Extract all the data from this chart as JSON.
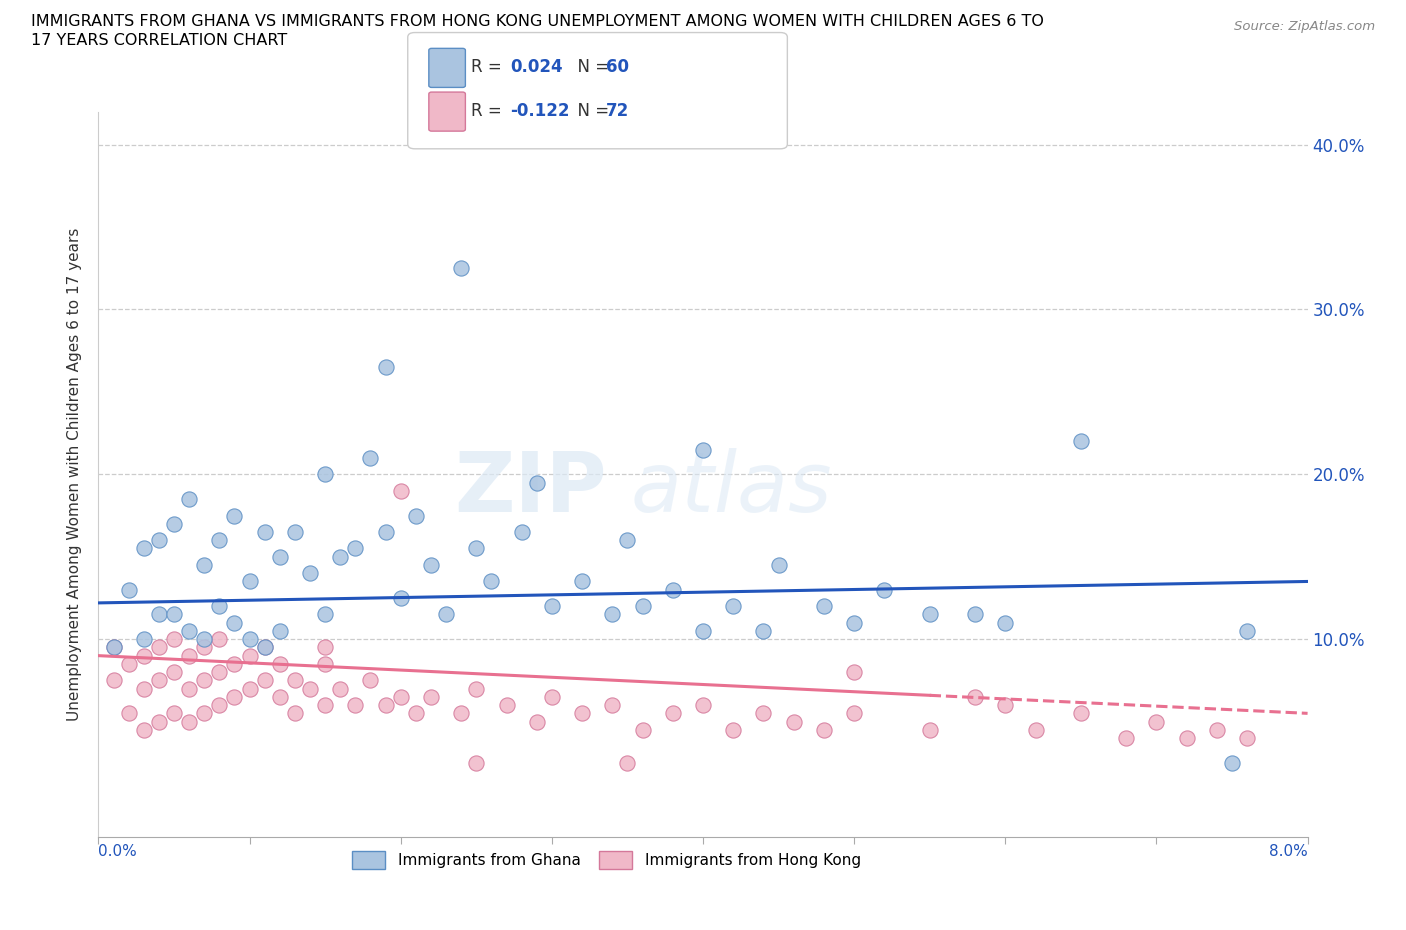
{
  "title_line1": "IMMIGRANTS FROM GHANA VS IMMIGRANTS FROM HONG KONG UNEMPLOYMENT AMONG WOMEN WITH CHILDREN AGES 6 TO",
  "title_line2": "17 YEARS CORRELATION CHART",
  "source_text": "Source: ZipAtlas.com",
  "ylabel": "Unemployment Among Women with Children Ages 6 to 17 years",
  "y_ticks": [
    0.0,
    0.1,
    0.2,
    0.3,
    0.4
  ],
  "y_tick_labels": [
    "",
    "10.0%",
    "20.0%",
    "30.0%",
    "40.0%"
  ],
  "x_lim": [
    0.0,
    0.08
  ],
  "y_lim": [
    -0.02,
    0.42
  ],
  "ghana_color": "#aac4e0",
  "ghana_edge_color": "#5b8ec4",
  "hk_color": "#f0b8c8",
  "hk_edge_color": "#d4789a",
  "ghana_line_color": "#2255bb",
  "hk_line_color": "#e87090",
  "legend_ghana_R": "R = 0.024",
  "legend_ghana_N": "N = 60",
  "legend_hk_R": "R = -0.122",
  "legend_hk_N": "N = 72",
  "watermark_zip": "ZIP",
  "watermark_atlas": "atlas",
  "ghana_x": [
    0.001,
    0.002,
    0.003,
    0.003,
    0.004,
    0.004,
    0.005,
    0.005,
    0.006,
    0.006,
    0.007,
    0.007,
    0.008,
    0.008,
    0.009,
    0.009,
    0.01,
    0.01,
    0.011,
    0.011,
    0.012,
    0.012,
    0.013,
    0.014,
    0.015,
    0.015,
    0.016,
    0.017,
    0.018,
    0.019,
    0.02,
    0.021,
    0.022,
    0.023,
    0.025,
    0.026,
    0.028,
    0.03,
    0.032,
    0.034,
    0.036,
    0.038,
    0.04,
    0.042,
    0.044,
    0.048,
    0.05,
    0.055,
    0.06,
    0.065,
    0.019,
    0.024,
    0.029,
    0.035,
    0.04,
    0.045,
    0.052,
    0.058,
    0.075,
    0.076
  ],
  "ghana_y": [
    0.095,
    0.13,
    0.1,
    0.155,
    0.115,
    0.16,
    0.115,
    0.17,
    0.105,
    0.185,
    0.1,
    0.145,
    0.12,
    0.16,
    0.11,
    0.175,
    0.1,
    0.135,
    0.095,
    0.165,
    0.105,
    0.15,
    0.165,
    0.14,
    0.115,
    0.2,
    0.15,
    0.155,
    0.21,
    0.165,
    0.125,
    0.175,
    0.145,
    0.115,
    0.155,
    0.135,
    0.165,
    0.12,
    0.135,
    0.115,
    0.12,
    0.13,
    0.105,
    0.12,
    0.105,
    0.12,
    0.11,
    0.115,
    0.11,
    0.22,
    0.265,
    0.325,
    0.195,
    0.16,
    0.215,
    0.145,
    0.13,
    0.115,
    0.025,
    0.105
  ],
  "hk_x": [
    0.001,
    0.001,
    0.002,
    0.002,
    0.003,
    0.003,
    0.003,
    0.004,
    0.004,
    0.004,
    0.005,
    0.005,
    0.005,
    0.006,
    0.006,
    0.006,
    0.007,
    0.007,
    0.007,
    0.008,
    0.008,
    0.008,
    0.009,
    0.009,
    0.01,
    0.01,
    0.011,
    0.011,
    0.012,
    0.012,
    0.013,
    0.013,
    0.014,
    0.015,
    0.015,
    0.016,
    0.017,
    0.018,
    0.019,
    0.02,
    0.021,
    0.022,
    0.024,
    0.025,
    0.027,
    0.029,
    0.03,
    0.032,
    0.034,
    0.036,
    0.038,
    0.04,
    0.042,
    0.044,
    0.046,
    0.048,
    0.05,
    0.055,
    0.058,
    0.06,
    0.062,
    0.065,
    0.068,
    0.07,
    0.072,
    0.074,
    0.076,
    0.05,
    0.035,
    0.025,
    0.02,
    0.015
  ],
  "hk_y": [
    0.095,
    0.075,
    0.085,
    0.055,
    0.09,
    0.07,
    0.045,
    0.095,
    0.075,
    0.05,
    0.1,
    0.08,
    0.055,
    0.09,
    0.07,
    0.05,
    0.095,
    0.075,
    0.055,
    0.1,
    0.08,
    0.06,
    0.085,
    0.065,
    0.09,
    0.07,
    0.095,
    0.075,
    0.085,
    0.065,
    0.075,
    0.055,
    0.07,
    0.085,
    0.06,
    0.07,
    0.06,
    0.075,
    0.06,
    0.065,
    0.055,
    0.065,
    0.055,
    0.07,
    0.06,
    0.05,
    0.065,
    0.055,
    0.06,
    0.045,
    0.055,
    0.06,
    0.045,
    0.055,
    0.05,
    0.045,
    0.055,
    0.045,
    0.065,
    0.06,
    0.045,
    0.055,
    0.04,
    0.05,
    0.04,
    0.045,
    0.04,
    0.08,
    0.025,
    0.025,
    0.19,
    0.095
  ]
}
